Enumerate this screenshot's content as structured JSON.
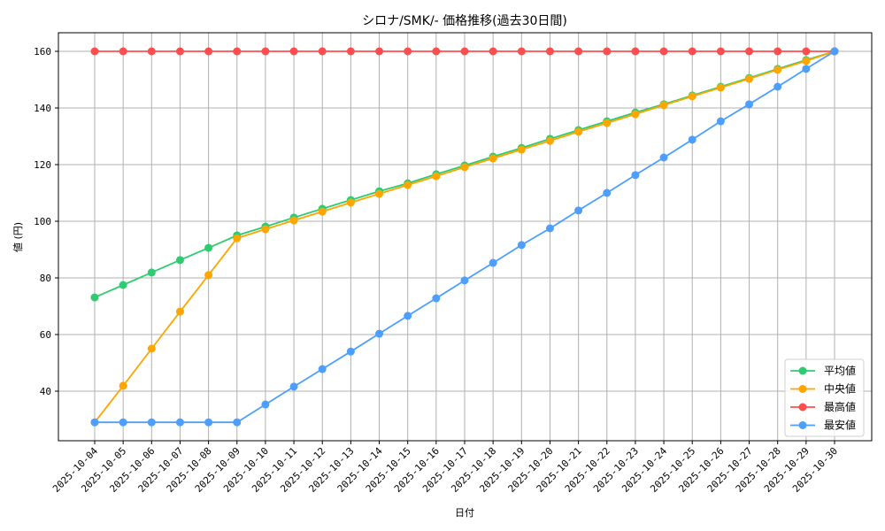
{
  "chart_data": {
    "type": "line",
    "title": "シロナ/SMK/- 価格推移(過去30日間)",
    "xlabel": "日付",
    "ylabel": "値 (円)",
    "ylim": [
      22.4,
      166.6
    ],
    "yticks": [
      40,
      60,
      80,
      100,
      120,
      140,
      160
    ],
    "grid": true,
    "legend_position": "lower right",
    "x": [
      "2025-10-04",
      "2025-10-05",
      "2025-10-06",
      "2025-10-07",
      "2025-10-08",
      "2025-10-09",
      "2025-10-10",
      "2025-10-11",
      "2025-10-12",
      "2025-10-13",
      "2025-10-14",
      "2025-10-15",
      "2025-10-16",
      "2025-10-17",
      "2025-10-18",
      "2025-10-19",
      "2025-10-20",
      "2025-10-21",
      "2025-10-22",
      "2025-10-23",
      "2025-10-24",
      "2025-10-25",
      "2025-10-26",
      "2025-10-27",
      "2025-10-28",
      "2025-10-29",
      "2025-10-30"
    ],
    "series": [
      {
        "name": "平均値",
        "color": "#2ecc71",
        "values": [
          73.1,
          77.5,
          81.9,
          86.3,
          90.6,
          95.0,
          98.1,
          101.3,
          104.4,
          107.5,
          110.6,
          113.4,
          116.6,
          119.7,
          122.8,
          125.9,
          129.1,
          132.2,
          135.3,
          138.4,
          141.3,
          144.4,
          147.5,
          150.6,
          153.8,
          156.9,
          160.0
        ]
      },
      {
        "name": "中央値",
        "color": "#ffa500",
        "values": [
          29.0,
          41.9,
          55.0,
          68.1,
          81.0,
          94.0,
          97.2,
          100.3,
          103.4,
          106.6,
          109.7,
          112.8,
          115.9,
          119.1,
          122.2,
          125.3,
          128.4,
          131.6,
          134.7,
          137.8,
          141.0,
          144.1,
          147.2,
          150.3,
          153.5,
          156.6,
          160.0
        ]
      },
      {
        "name": "最高値",
        "color": "#ff4d4d",
        "values": [
          160,
          160,
          160,
          160,
          160,
          160,
          160,
          160,
          160,
          160,
          160,
          160,
          160,
          160,
          160,
          160,
          160,
          160,
          160,
          160,
          160,
          160,
          160,
          160,
          160,
          160,
          160
        ]
      },
      {
        "name": "最安値",
        "color": "#4d9fff",
        "values": [
          29.0,
          29.0,
          29.0,
          29.0,
          29.0,
          29.0,
          35.3,
          41.6,
          47.8,
          54.0,
          60.3,
          66.6,
          72.8,
          79.1,
          85.3,
          91.6,
          97.5,
          103.8,
          110.0,
          116.3,
          122.5,
          128.8,
          135.3,
          141.3,
          147.5,
          153.8,
          160.0
        ]
      }
    ]
  }
}
